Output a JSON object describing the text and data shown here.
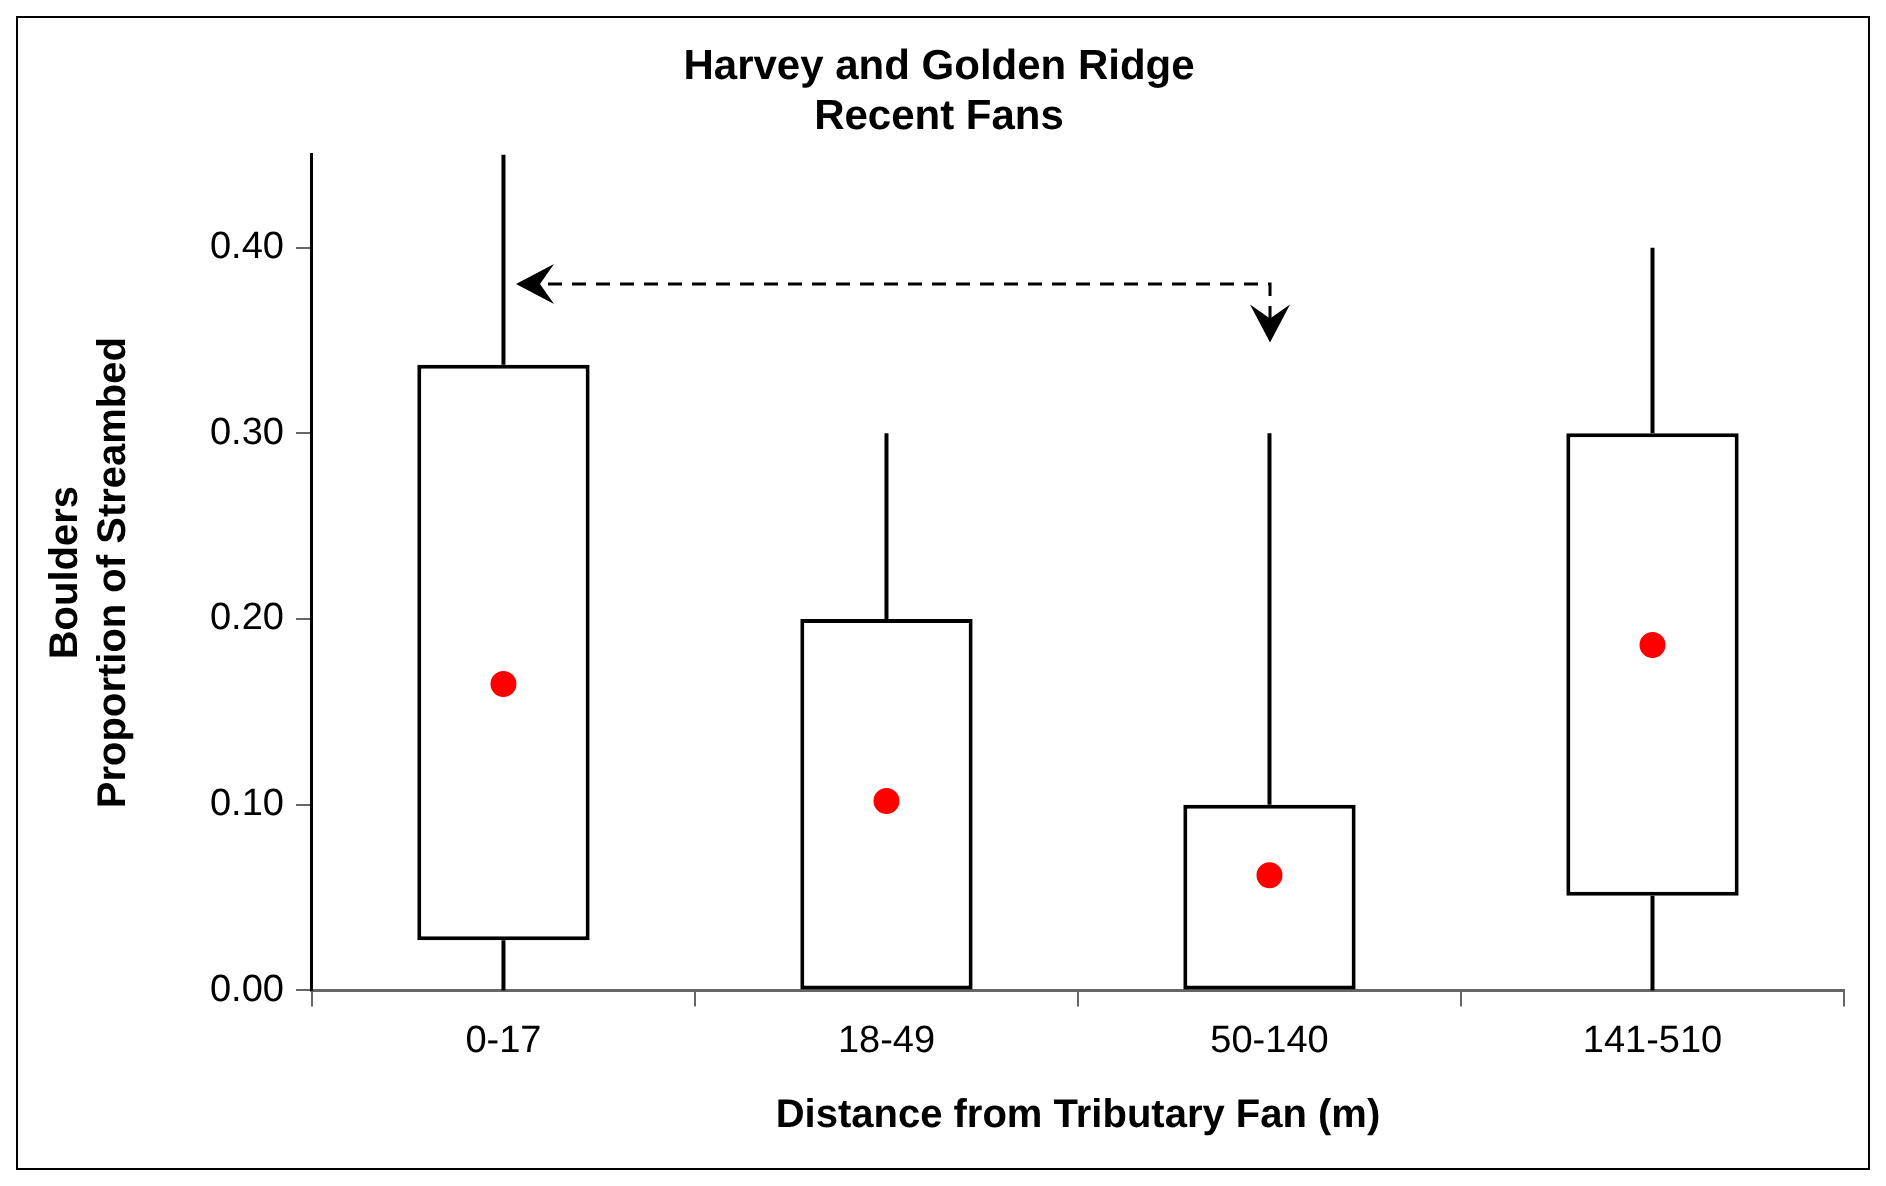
{
  "chart_data": {
    "type": "box",
    "title": "Harvey and Golden Ridge\nRecent Fans",
    "xlabel": "Distance from Tributary Fan (m)",
    "ylabel": "Boulders\nProportion of Streambed",
    "categories": [
      "0-17",
      "18-49",
      "50-140",
      "141-510"
    ],
    "series": [
      {
        "type": "box",
        "color": "#000000",
        "boxes": [
          {
            "low": 0,
            "q1": 0.027,
            "median": null,
            "q3": 0.337,
            "high": 0.45
          },
          {
            "low": 0,
            "q1": 0,
            "median": null,
            "q3": 0.2,
            "high": 0.3
          },
          {
            "low": 0,
            "q1": 0,
            "median": null,
            "q3": 0.1,
            "high": 0.3
          },
          {
            "low": 0,
            "q1": 0.051,
            "median": null,
            "q3": 0.3,
            "high": 0.4
          }
        ]
      },
      {
        "type": "scatter",
        "color": "#ff0000",
        "marker": "circle",
        "x": [
          "0-17",
          "18-49",
          "50-140",
          "141-510"
        ],
        "values": [
          0.165,
          0.102,
          0.062,
          0.186
        ]
      }
    ],
    "ylim": [
      0,
      0.45
    ],
    "yticks": [
      {
        "value": 0,
        "label": "0.00"
      },
      {
        "value": 0.1,
        "label": "0.10"
      },
      {
        "value": 0.2,
        "label": "0.20"
      },
      {
        "value": 0.3,
        "label": "0.30"
      },
      {
        "value": 0.4,
        "label": "0.40"
      }
    ],
    "grid": false,
    "legend": false
  }
}
